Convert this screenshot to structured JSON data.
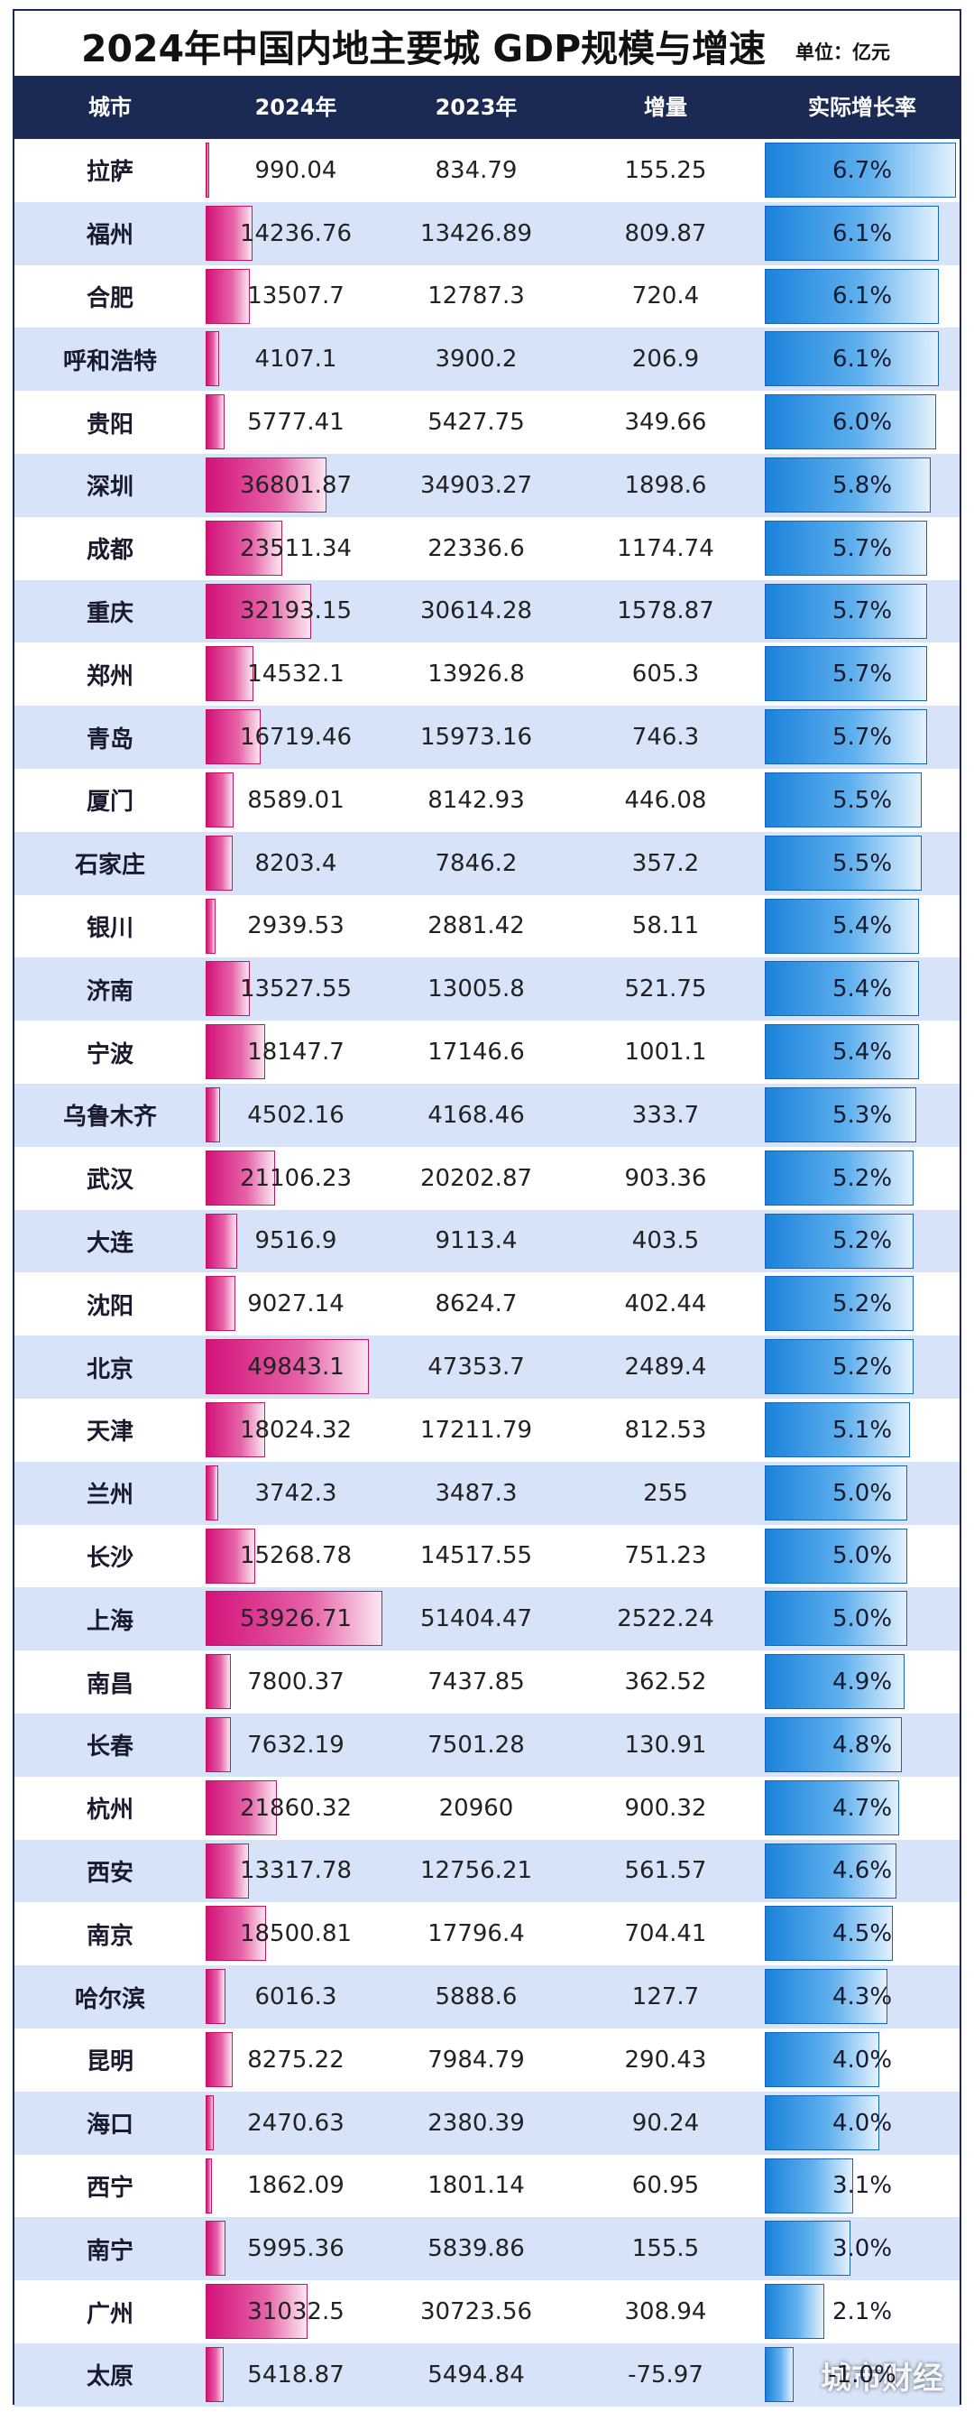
{
  "title": "2024年中国内地主要城 GDP规模与增速",
  "unit": "单位：亿元",
  "watermark": "城市财经",
  "colors": {
    "header_bg": "#1b2a55",
    "alt_row": "#d6e3f8",
    "gdp_bar": "#d3127a",
    "growth_bar": "#1a82db"
  },
  "headers": {
    "city": "城市",
    "y2024": "2024年",
    "y2023": "2023年",
    "increase": "增量",
    "growth": "实际增长率"
  },
  "chart_data": {
    "type": "table",
    "columns": [
      "城市",
      "2024年",
      "2023年",
      "增量",
      "实际增长率"
    ],
    "gdp_bar_max": 53926.71,
    "growth_bar_max": 6.7,
    "rows": [
      {
        "city": "拉萨",
        "y2024": "990.04",
        "y2023": "834.79",
        "increase": "155.25",
        "growth": "6.7%"
      },
      {
        "city": "福州",
        "y2024": "14236.76",
        "y2023": "13426.89",
        "increase": "809.87",
        "growth": "6.1%"
      },
      {
        "city": "合肥",
        "y2024": "13507.7",
        "y2023": "12787.3",
        "increase": "720.4",
        "growth": "6.1%"
      },
      {
        "city": "呼和浩特",
        "y2024": "4107.1",
        "y2023": "3900.2",
        "increase": "206.9",
        "growth": "6.1%"
      },
      {
        "city": "贵阳",
        "y2024": "5777.41",
        "y2023": "5427.75",
        "increase": "349.66",
        "growth": "6.0%"
      },
      {
        "city": "深圳",
        "y2024": "36801.87",
        "y2023": "34903.27",
        "increase": "1898.6",
        "growth": "5.8%"
      },
      {
        "city": "成都",
        "y2024": "23511.34",
        "y2023": "22336.6",
        "increase": "1174.74",
        "growth": "5.7%"
      },
      {
        "city": "重庆",
        "y2024": "32193.15",
        "y2023": "30614.28",
        "increase": "1578.87",
        "growth": "5.7%"
      },
      {
        "city": "郑州",
        "y2024": "14532.1",
        "y2023": "13926.8",
        "increase": "605.3",
        "growth": "5.7%"
      },
      {
        "city": "青岛",
        "y2024": "16719.46",
        "y2023": "15973.16",
        "increase": "746.3",
        "growth": "5.7%"
      },
      {
        "city": "厦门",
        "y2024": "8589.01",
        "y2023": "8142.93",
        "increase": "446.08",
        "growth": "5.5%"
      },
      {
        "city": "石家庄",
        "y2024": "8203.4",
        "y2023": "7846.2",
        "increase": "357.2",
        "growth": "5.5%"
      },
      {
        "city": "银川",
        "y2024": "2939.53",
        "y2023": "2881.42",
        "increase": "58.11",
        "growth": "5.4%"
      },
      {
        "city": "济南",
        "y2024": "13527.55",
        "y2023": "13005.8",
        "increase": "521.75",
        "growth": "5.4%"
      },
      {
        "city": "宁波",
        "y2024": "18147.7",
        "y2023": "17146.6",
        "increase": "1001.1",
        "growth": "5.4%"
      },
      {
        "city": "乌鲁木齐",
        "y2024": "4502.16",
        "y2023": "4168.46",
        "increase": "333.7",
        "growth": "5.3%"
      },
      {
        "city": "武汉",
        "y2024": "21106.23",
        "y2023": "20202.87",
        "increase": "903.36",
        "growth": "5.2%"
      },
      {
        "city": "大连",
        "y2024": "9516.9",
        "y2023": "9113.4",
        "increase": "403.5",
        "growth": "5.2%"
      },
      {
        "city": "沈阳",
        "y2024": "9027.14",
        "y2023": "8624.7",
        "increase": "402.44",
        "growth": "5.2%"
      },
      {
        "city": "北京",
        "y2024": "49843.1",
        "y2023": "47353.7",
        "increase": "2489.4",
        "growth": "5.2%"
      },
      {
        "city": "天津",
        "y2024": "18024.32",
        "y2023": "17211.79",
        "increase": "812.53",
        "growth": "5.1%"
      },
      {
        "city": "兰州",
        "y2024": "3742.3",
        "y2023": "3487.3",
        "increase": "255",
        "growth": "5.0%"
      },
      {
        "city": "长沙",
        "y2024": "15268.78",
        "y2023": "14517.55",
        "increase": "751.23",
        "growth": "5.0%"
      },
      {
        "city": "上海",
        "y2024": "53926.71",
        "y2023": "51404.47",
        "increase": "2522.24",
        "growth": "5.0%"
      },
      {
        "city": "南昌",
        "y2024": "7800.37",
        "y2023": "7437.85",
        "increase": "362.52",
        "growth": "4.9%"
      },
      {
        "city": "长春",
        "y2024": "7632.19",
        "y2023": "7501.28",
        "increase": "130.91",
        "growth": "4.8%"
      },
      {
        "city": "杭州",
        "y2024": "21860.32",
        "y2023": "20960",
        "increase": "900.32",
        "growth": "4.7%"
      },
      {
        "city": "西安",
        "y2024": "13317.78",
        "y2023": "12756.21",
        "increase": "561.57",
        "growth": "4.6%"
      },
      {
        "city": "南京",
        "y2024": "18500.81",
        "y2023": "17796.4",
        "increase": "704.41",
        "growth": "4.5%"
      },
      {
        "city": "哈尔滨",
        "y2024": "6016.3",
        "y2023": "5888.6",
        "increase": "127.7",
        "growth": "4.3%"
      },
      {
        "city": "昆明",
        "y2024": "8275.22",
        "y2023": "7984.79",
        "increase": "290.43",
        "growth": "4.0%"
      },
      {
        "city": "海口",
        "y2024": "2470.63",
        "y2023": "2380.39",
        "increase": "90.24",
        "growth": "4.0%"
      },
      {
        "city": "西宁",
        "y2024": "1862.09",
        "y2023": "1801.14",
        "increase": "60.95",
        "growth": "3.1%"
      },
      {
        "city": "南宁",
        "y2024": "5995.36",
        "y2023": "5839.86",
        "increase": "155.5",
        "growth": "3.0%"
      },
      {
        "city": "广州",
        "y2024": "31032.5",
        "y2023": "30723.56",
        "increase": "308.94",
        "growth": "2.1%"
      },
      {
        "city": "太原",
        "y2024": "5418.87",
        "y2023": "5494.84",
        "increase": "-75.97",
        "growth": "-1.0%"
      }
    ]
  }
}
